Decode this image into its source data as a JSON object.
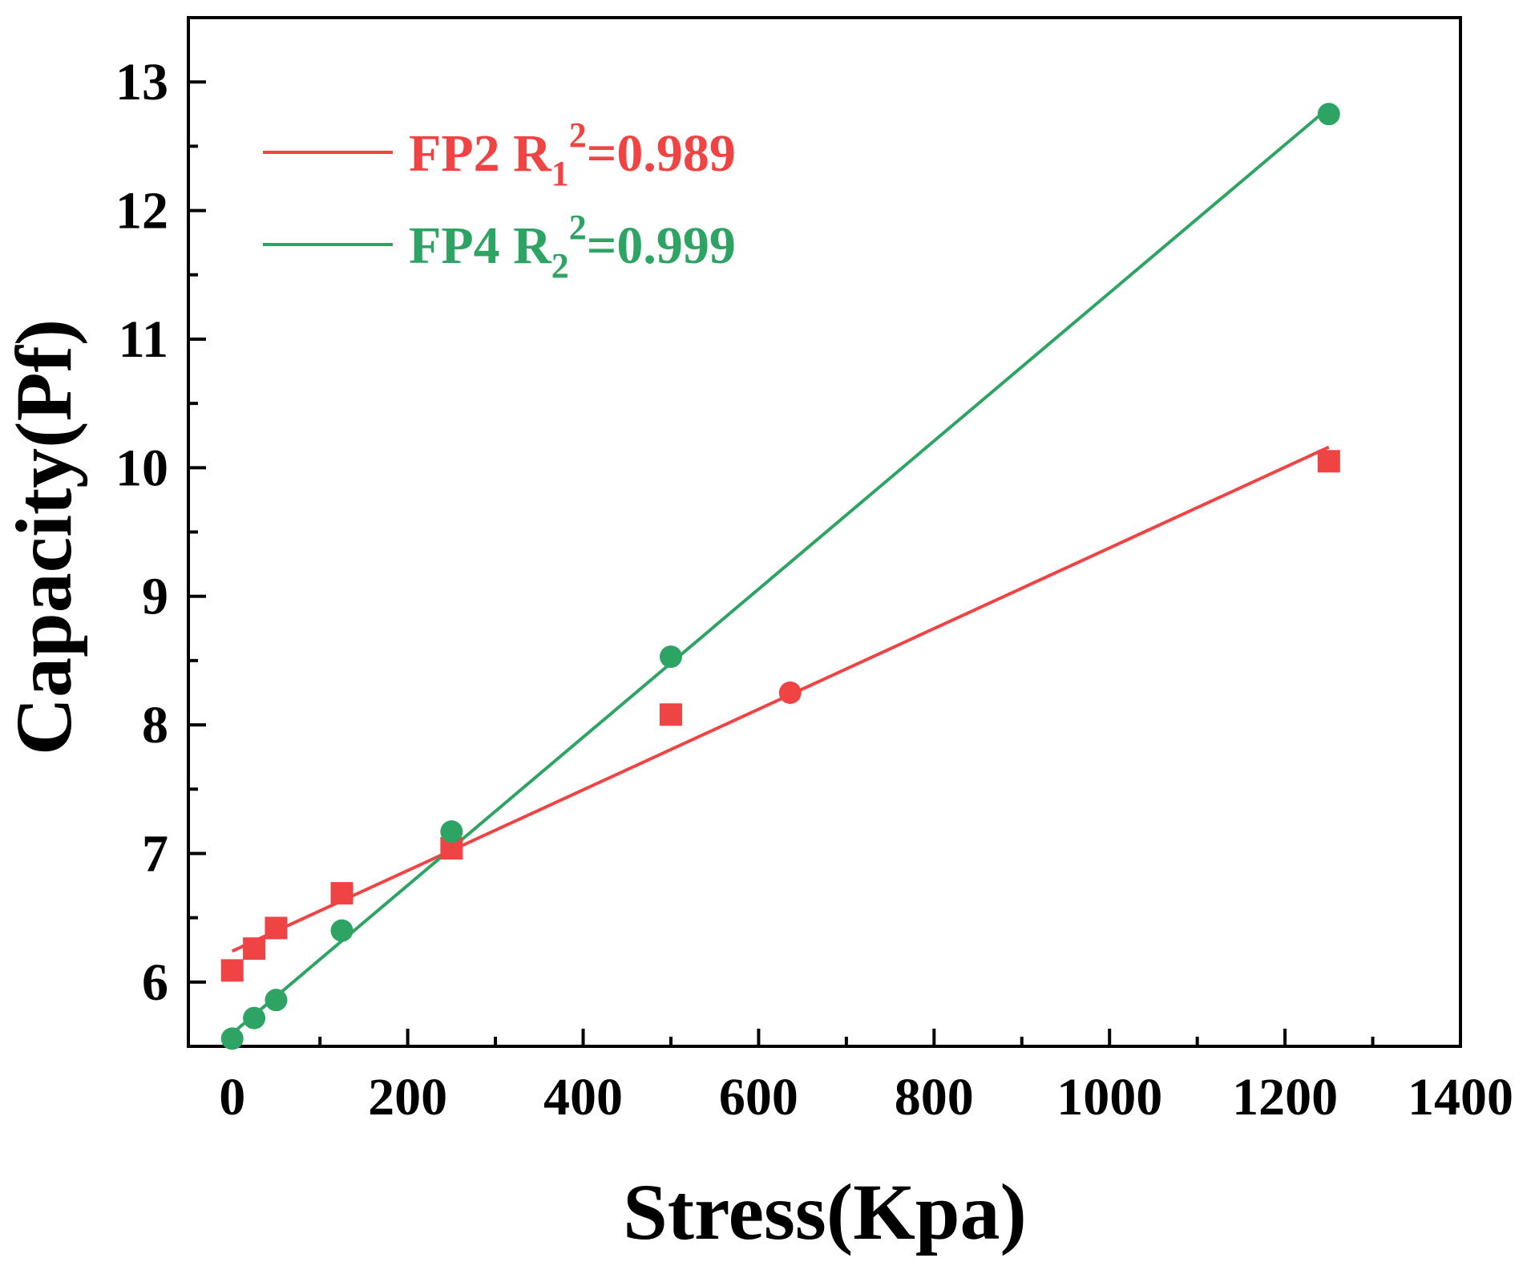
{
  "chart_data": {
    "type": "scatter",
    "title": "",
    "xlabel": "Stress(Kpa)",
    "ylabel": "Capacity(Pf)",
    "xlim": [
      -50,
      1400
    ],
    "ylim": [
      5.5,
      13.5
    ],
    "xticks": [
      0,
      200,
      400,
      600,
      800,
      1000,
      1200,
      1400
    ],
    "xtick_labels": [
      "0",
      "200",
      "400",
      "600",
      "800",
      "1000",
      "1200",
      "1400"
    ],
    "yticks": [
      6,
      7,
      8,
      9,
      10,
      11,
      12,
      13
    ],
    "ytick_labels": [
      "6",
      "7",
      "8",
      "9",
      "10",
      "11",
      "12",
      "13"
    ],
    "grid": false,
    "legend_position": "top-left",
    "series": [
      {
        "name": "FP2",
        "legend": {
          "prefix": "FP2 R",
          "sub": "1",
          "sup": "2",
          "suffix": "=0.989"
        },
        "r2": 0.989,
        "color": "#f04444",
        "marker": "square",
        "points": [
          {
            "x": 0,
            "y": 6.09
          },
          {
            "x": 25,
            "y": 6.26
          },
          {
            "x": 50,
            "y": 6.42
          },
          {
            "x": 125,
            "y": 6.69
          },
          {
            "x": 250,
            "y": 7.04
          },
          {
            "x": 500,
            "y": 8.08
          },
          {
            "x": 1250,
            "y": 10.05
          }
        ],
        "extra_points": [
          {
            "x": 636,
            "y": 8.25,
            "marker": "circle"
          }
        ],
        "fit": {
          "x": [
            0,
            1250
          ],
          "y": [
            6.24,
            10.16
          ]
        }
      },
      {
        "name": "FP4",
        "legend": {
          "prefix": "FP4 R",
          "sub": "2",
          "sup": "2",
          "suffix": "=0.999"
        },
        "r2": 0.999,
        "color": "#2ea464",
        "marker": "circle",
        "points": [
          {
            "x": 0,
            "y": 5.56
          },
          {
            "x": 25,
            "y": 5.72
          },
          {
            "x": 50,
            "y": 5.86
          },
          {
            "x": 125,
            "y": 6.4
          },
          {
            "x": 250,
            "y": 7.17
          },
          {
            "x": 500,
            "y": 8.53
          },
          {
            "x": 1250,
            "y": 12.75
          }
        ],
        "fit": {
          "x": [
            0,
            1250
          ],
          "y": [
            5.6,
            12.8
          ]
        }
      }
    ]
  }
}
